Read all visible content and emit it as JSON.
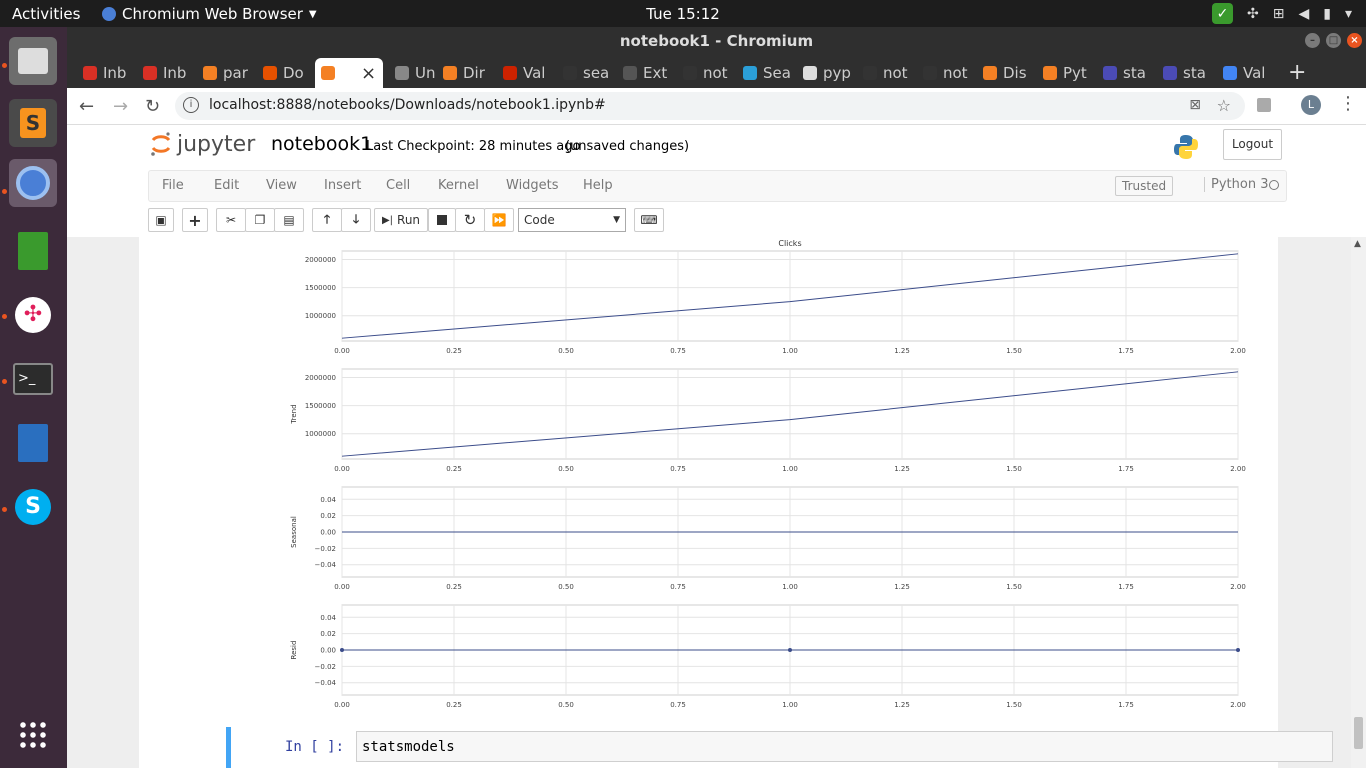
{
  "os": {
    "activities": "Activities",
    "app_name": "Chromium Web Browser",
    "clock": "Tue 15:12"
  },
  "window": {
    "title": "notebook1 - Chromium"
  },
  "tabs": [
    {
      "label": "Inb",
      "color": "#d93025"
    },
    {
      "label": "Inb",
      "color": "#d93025"
    },
    {
      "label": "par",
      "color": "#f48024"
    },
    {
      "label": "Do",
      "color": "#e65100"
    },
    {
      "label": "",
      "color": "#f48024"
    },
    {
      "label": "Un",
      "color": "#888888"
    },
    {
      "label": "Dir",
      "color": "#f48024"
    },
    {
      "label": "Val",
      "color": "#cc2200"
    },
    {
      "label": "sea",
      "color": "#333333"
    },
    {
      "label": "Ext",
      "color": "#555555"
    },
    {
      "label": "not",
      "color": "#333333"
    },
    {
      "label": "Sea",
      "color": "#2b9fd8"
    },
    {
      "label": "pyp",
      "color": "#dddddd"
    },
    {
      "label": "not",
      "color": "#333333"
    },
    {
      "label": "not",
      "color": "#333333"
    },
    {
      "label": "Dis",
      "color": "#f48024"
    },
    {
      "label": "Pyt",
      "color": "#f48024"
    },
    {
      "label": "sta",
      "color": "#4b4bb5"
    },
    {
      "label": "sta",
      "color": "#4b4bb5"
    },
    {
      "label": "Val",
      "color": "#4285f4"
    }
  ],
  "address": {
    "url": "localhost:8888/notebooks/Downloads/notebook1.ipynb#"
  },
  "profile_initial": "L",
  "jupyter": {
    "logo_text": "jupyter",
    "notebook_name": "notebook1",
    "checkpoint": "Last Checkpoint: 28 minutes ago",
    "unsaved": "(unsaved changes)",
    "logout": "Logout",
    "menu": [
      "File",
      "Edit",
      "View",
      "Insert",
      "Cell",
      "Kernel",
      "Widgets",
      "Help"
    ],
    "trusted": "Trusted",
    "kernel": "Python 3",
    "run_label": "Run",
    "cell_type": "Code"
  },
  "chart_data": [
    {
      "type": "line",
      "title": "Clicks",
      "ylabel": "",
      "x": [
        0.0,
        1.0,
        2.0
      ],
      "series": [
        {
          "values": [
            600000,
            1250000,
            2100000
          ]
        }
      ],
      "xlim": [
        0,
        2
      ],
      "ylim": [
        550000,
        2150000
      ],
      "yticks": [
        "1000000",
        "1500000",
        "2000000"
      ],
      "xticks": [
        "0.00",
        "0.25",
        "0.50",
        "0.75",
        "1.00",
        "1.25",
        "1.50",
        "1.75",
        "2.00"
      ],
      "grid": true
    },
    {
      "type": "line",
      "title": "",
      "ylabel": "Trend",
      "x": [
        0.0,
        1.0,
        2.0
      ],
      "series": [
        {
          "values": [
            600000,
            1250000,
            2100000
          ]
        }
      ],
      "xlim": [
        0,
        2
      ],
      "ylim": [
        550000,
        2150000
      ],
      "yticks": [
        "1000000",
        "1500000",
        "2000000"
      ],
      "xticks": [
        "0.00",
        "0.25",
        "0.50",
        "0.75",
        "1.00",
        "1.25",
        "1.50",
        "1.75",
        "2.00"
      ],
      "grid": true
    },
    {
      "type": "line",
      "title": "",
      "ylabel": "Seasonal",
      "x": [
        0.0,
        1.0,
        2.0
      ],
      "series": [
        {
          "values": [
            0,
            0,
            0
          ]
        }
      ],
      "xlim": [
        0,
        2
      ],
      "ylim": [
        -0.055,
        0.055
      ],
      "yticks": [
        "0.04",
        "0.02",
        "0.00",
        "−0.02",
        "−0.04"
      ],
      "xticks": [
        "0.00",
        "0.25",
        "0.50",
        "0.75",
        "1.00",
        "1.25",
        "1.50",
        "1.75",
        "2.00"
      ],
      "grid": true
    },
    {
      "type": "scatter",
      "title": "",
      "ylabel": "Resid",
      "x": [
        0.0,
        1.0,
        2.0
      ],
      "series": [
        {
          "values": [
            0,
            0,
            0
          ]
        }
      ],
      "xlim": [
        0,
        2
      ],
      "ylim": [
        -0.055,
        0.055
      ],
      "yticks": [
        "0.04",
        "0.02",
        "0.00",
        "−0.02",
        "−0.04"
      ],
      "xticks": [
        "0.00",
        "0.25",
        "0.50",
        "0.75",
        "1.00",
        "1.25",
        "1.50",
        "1.75",
        "2.00"
      ],
      "grid": true,
      "zero_line": true
    }
  ],
  "cell": {
    "prompt": "In [ ]:",
    "code": "statsmodels"
  }
}
